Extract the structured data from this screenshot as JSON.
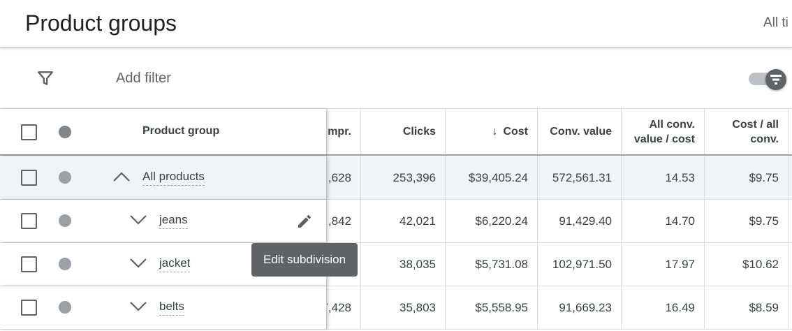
{
  "header": {
    "title": "Product groups",
    "date_range": "All ti"
  },
  "filterbar": {
    "add_filter": "Add filter",
    "filter_icon": "filter-icon",
    "toggle_icon": "segment-toggle-icon"
  },
  "table": {
    "columns": {
      "product_group": "Product group",
      "impr": "mpr.",
      "clicks": "Clicks",
      "cost": "Cost",
      "cost_sort_arrow": "↓",
      "conv_value": "Conv. value",
      "all_conv_value_cost": "All conv. value / cost",
      "cost_all_conv": "Cost / all conv."
    },
    "rows": [
      {
        "name": "All products",
        "impr": ",628",
        "clicks": "253,396",
        "cost": "$39,405.24",
        "conv_value": "572,561.31",
        "all_conv": "14.53",
        "cost_all": "$9.75",
        "expanded": true
      },
      {
        "name": "jeans",
        "impr": ",842",
        "clicks": "42,021",
        "cost": "$6,220.24",
        "conv_value": "91,429.40",
        "all_conv": "14.70",
        "cost_all": "$9.75",
        "expanded": false
      },
      {
        "name": "jacket",
        "impr": "",
        "clicks": "38,035",
        "cost": "$5,731.08",
        "conv_value": "102,971.50",
        "all_conv": "17.97",
        "cost_all": "$10.62",
        "expanded": false
      },
      {
        "name": "belts",
        "impr": "7,428",
        "clicks": "35,803",
        "cost": "$5,558.95",
        "conv_value": "91,669.23",
        "all_conv": "16.49",
        "cost_all": "$8.59",
        "expanded": false
      }
    ]
  },
  "tooltip": {
    "text": "Edit subdivision"
  },
  "colors": {
    "accent_gray": "#5f6368",
    "status_dot": "#9aa0a6",
    "total_row_bg": "#f1f3f4"
  }
}
